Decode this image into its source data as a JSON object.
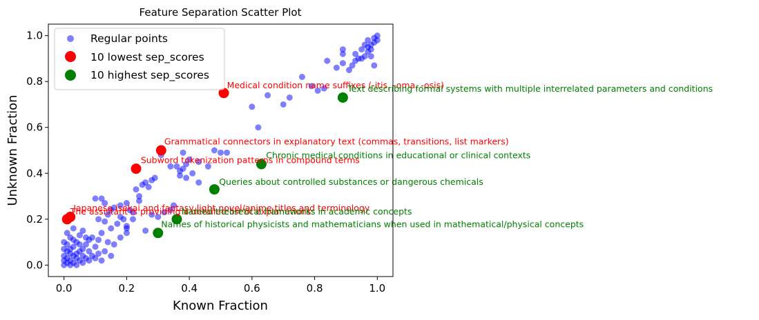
{
  "chart_data": {
    "type": "scatter",
    "title": "Feature Separation Scatter Plot",
    "xlabel": "Known Fraction",
    "ylabel": "Unknown Fraction",
    "xlim": [
      -0.05,
      1.05
    ],
    "ylim": [
      -0.05,
      1.05
    ],
    "xticks": [
      "0.0",
      "0.2",
      "0.4",
      "0.6",
      "0.8",
      "1.0"
    ],
    "yticks": [
      "0.0",
      "0.2",
      "0.4",
      "0.6",
      "0.8",
      "1.0"
    ],
    "grid": false,
    "legend_position": "top-left",
    "colors": {
      "regular": "#0000ff",
      "lowest": "#ff0000",
      "highest": "#008000"
    },
    "series": [
      {
        "name": "Regular points",
        "points": [
          [
            0.0,
            0.0
          ],
          [
            0.01,
            0.01
          ],
          [
            0.02,
            0.0
          ],
          [
            0.0,
            0.02
          ],
          [
            0.03,
            0.01
          ],
          [
            0.01,
            0.03
          ],
          [
            0.02,
            0.02
          ],
          [
            0.04,
            0.0
          ],
          [
            0.0,
            0.04
          ],
          [
            0.05,
            0.02
          ],
          [
            0.03,
            0.04
          ],
          [
            0.06,
            0.01
          ],
          [
            0.01,
            0.06
          ],
          [
            0.04,
            0.05
          ],
          [
            0.07,
            0.03
          ],
          [
            0.02,
            0.07
          ],
          [
            0.08,
            0.02
          ],
          [
            0.05,
            0.06
          ],
          [
            0.09,
            0.04
          ],
          [
            0.03,
            0.08
          ],
          [
            0.06,
            0.07
          ],
          [
            0.1,
            0.03
          ],
          [
            0.0,
            0.1
          ],
          [
            0.07,
            0.09
          ],
          [
            0.11,
            0.05
          ],
          [
            0.04,
            0.1
          ],
          [
            0.12,
            0.02
          ],
          [
            0.08,
            0.11
          ],
          [
            0.02,
            0.12
          ],
          [
            0.13,
            0.06
          ],
          [
            0.05,
            0.13
          ],
          [
            0.1,
            0.08
          ],
          [
            0.14,
            0.1
          ],
          [
            0.01,
            0.14
          ],
          [
            0.09,
            0.12
          ],
          [
            0.15,
            0.04
          ],
          [
            0.06,
            0.15
          ],
          [
            0.12,
            0.14
          ],
          [
            0.16,
            0.09
          ],
          [
            0.03,
            0.16
          ],
          [
            0.0,
            0.07
          ],
          [
            0.02,
            0.05
          ],
          [
            0.04,
            0.03
          ],
          [
            0.06,
            0.04
          ],
          [
            0.08,
            0.06
          ],
          [
            0.01,
            0.09
          ],
          [
            0.03,
            0.11
          ],
          [
            0.05,
            0.09
          ],
          [
            0.07,
            0.12
          ],
          [
            0.11,
            0.11
          ],
          [
            0.1,
            0.29
          ],
          [
            0.12,
            0.29
          ],
          [
            0.14,
            0.22
          ],
          [
            0.13,
            0.27
          ],
          [
            0.15,
            0.24
          ],
          [
            0.16,
            0.25
          ],
          [
            0.18,
            0.21
          ],
          [
            0.19,
            0.2
          ],
          [
            0.17,
            0.18
          ],
          [
            0.2,
            0.16
          ],
          [
            0.2,
            0.14
          ],
          [
            0.11,
            0.2
          ],
          [
            0.13,
            0.19
          ],
          [
            0.15,
            0.16
          ],
          [
            0.18,
            0.12
          ],
          [
            0.2,
            0.17
          ],
          [
            0.22,
            0.23
          ],
          [
            0.18,
            0.26
          ],
          [
            0.2,
            0.27
          ],
          [
            0.24,
            0.3
          ],
          [
            0.23,
            0.33
          ],
          [
            0.25,
            0.35
          ],
          [
            0.26,
            0.36
          ],
          [
            0.27,
            0.34
          ],
          [
            0.28,
            0.37
          ],
          [
            0.29,
            0.38
          ],
          [
            0.26,
            0.15
          ],
          [
            0.24,
            0.28
          ],
          [
            0.21,
            0.24
          ],
          [
            0.22,
            0.2
          ],
          [
            0.28,
            0.22
          ],
          [
            0.3,
            0.21
          ],
          [
            0.32,
            0.23
          ],
          [
            0.34,
            0.24
          ],
          [
            0.35,
            0.26
          ],
          [
            0.31,
            0.48
          ],
          [
            0.34,
            0.43
          ],
          [
            0.36,
            0.43
          ],
          [
            0.37,
            0.41
          ],
          [
            0.38,
            0.42
          ],
          [
            0.38,
            0.49
          ],
          [
            0.39,
            0.44
          ],
          [
            0.4,
            0.46
          ],
          [
            0.41,
            0.4
          ],
          [
            0.43,
            0.36
          ],
          [
            0.43,
            0.45
          ],
          [
            0.46,
            0.43
          ],
          [
            0.48,
            0.5
          ],
          [
            0.5,
            0.49
          ],
          [
            0.52,
            0.49
          ],
          [
            0.37,
            0.39
          ],
          [
            0.39,
            0.38
          ],
          [
            0.62,
            0.6
          ],
          [
            0.6,
            0.69
          ],
          [
            0.65,
            0.74
          ],
          [
            0.7,
            0.7
          ],
          [
            0.72,
            0.73
          ],
          [
            0.76,
            0.82
          ],
          [
            0.79,
            0.78
          ],
          [
            0.81,
            0.76
          ],
          [
            0.83,
            0.77
          ],
          [
            0.87,
            0.86
          ],
          [
            0.84,
            0.89
          ],
          [
            0.89,
            0.88
          ],
          [
            0.89,
            0.92
          ],
          [
            0.89,
            0.94
          ],
          [
            0.91,
            0.85
          ],
          [
            0.92,
            0.87
          ],
          [
            0.93,
            0.89
          ],
          [
            0.94,
            0.9
          ],
          [
            0.95,
            0.9
          ],
          [
            0.95,
            0.94
          ],
          [
            0.96,
            0.91
          ],
          [
            0.97,
            0.93
          ],
          [
            0.97,
            0.95
          ],
          [
            0.98,
            0.94
          ],
          [
            0.98,
            0.96
          ],
          [
            0.99,
            0.97
          ],
          [
            0.99,
            0.99
          ],
          [
            1.0,
            1.0
          ],
          [
            0.99,
            0.87
          ],
          [
            0.97,
            0.98
          ],
          [
            0.96,
            0.96
          ],
          [
            0.98,
            0.91
          ],
          [
            1.0,
            0.98
          ],
          [
            0.93,
            0.92
          ]
        ]
      },
      {
        "name": "10 lowest sep_scores",
        "points": [
          [
            0.51,
            0.75
          ],
          [
            0.31,
            0.5
          ],
          [
            0.23,
            0.42
          ],
          [
            0.02,
            0.21
          ],
          [
            0.01,
            0.2
          ]
        ]
      },
      {
        "name": "10 highest sep_scores",
        "points": [
          [
            0.89,
            0.73
          ],
          [
            0.63,
            0.44
          ],
          [
            0.48,
            0.33
          ],
          [
            0.36,
            0.2
          ],
          [
            0.3,
            0.14
          ]
        ]
      }
    ],
    "annotations": [
      {
        "text": "Medical condition name suffixes (-itis, -oma, -osis)",
        "x": 0.52,
        "y": 0.77,
        "series": "lowest"
      },
      {
        "text": "Text describing formal systems with multiple interrelated parameters and conditions",
        "x": 0.905,
        "y": 0.755,
        "series": "highest"
      },
      {
        "text": "Grammatical connectors in explanatory text (commas, transitions, list markers)",
        "x": 0.32,
        "y": 0.525,
        "series": "lowest"
      },
      {
        "text": "Chronic medical conditions in educational or clinical contexts",
        "x": 0.645,
        "y": 0.465,
        "series": "highest"
      },
      {
        "text": "Subword tokenization patterns in compound terms",
        "x": 0.245,
        "y": 0.445,
        "series": "lowest"
      },
      {
        "text": "Queries about controlled substances or dangerous chemicals",
        "x": 0.495,
        "y": 0.35,
        "series": "highest"
      },
      {
        "text": "Japanese isekai and fantasy light novel/anime titles and terminology",
        "x": 0.03,
        "y": 0.235,
        "series": "lowest"
      },
      {
        "text": "The assistant is providing a detailed list of explanations",
        "x": 0.02,
        "y": 0.22,
        "series": "lowest"
      },
      {
        "text": "Named theoretical frameworks in academic concepts",
        "x": 0.375,
        "y": 0.22,
        "series": "highest"
      },
      {
        "text": "Names of historical physicists and mathematicians when used in mathematical/physical concepts",
        "x": 0.31,
        "y": 0.165,
        "series": "highest"
      }
    ]
  }
}
